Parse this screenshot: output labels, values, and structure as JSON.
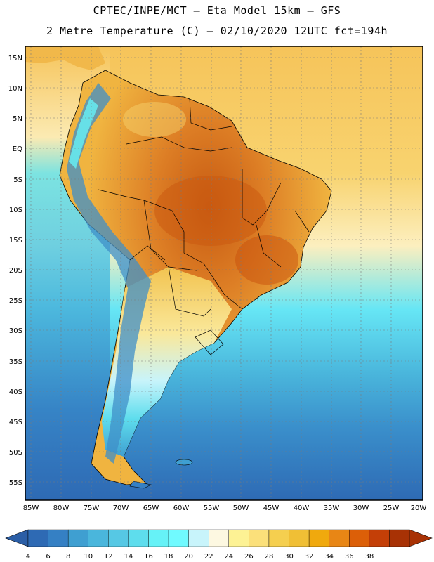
{
  "title": {
    "line1": "CPTEC/INPE/MCT –  Eta Model 15km – GFS",
    "line2": "2 Metre Temperature (C) – 02/10/2020 12UTC fct=194h"
  },
  "axes": {
    "lat_labels": [
      "15N",
      "10N",
      "5N",
      "EQ",
      "5S",
      "10S",
      "15S",
      "20S",
      "25S",
      "30S",
      "35S",
      "40S",
      "45S",
      "50S",
      "55S"
    ],
    "lon_labels": [
      "85W",
      "80W",
      "75W",
      "70W",
      "65W",
      "60W",
      "55W",
      "50W",
      "45W",
      "40W",
      "35W",
      "30W",
      "25W",
      "20W"
    ]
  },
  "colorbar": {
    "labels": [
      "4",
      "6",
      "8",
      "10",
      "12",
      "14",
      "16",
      "18",
      "20",
      "22",
      "24",
      "26",
      "28",
      "30",
      "32",
      "34",
      "36",
      "38"
    ],
    "colors": [
      "#2e6ab4",
      "#3580c4",
      "#3f9fd1",
      "#4ab6dc",
      "#56c8e4",
      "#5edded",
      "#66f2f7",
      "#70faff",
      "#c8f4fb",
      "#fdf8e1",
      "#fdf294",
      "#fbe07a",
      "#f5cf4f",
      "#f0bf35",
      "#f0a90d",
      "#e88615",
      "#dc5f08",
      "#c43f07",
      "#a83205"
    ],
    "left_arrow_color": "#2b5ea6",
    "right_arrow_color": "#a83205"
  },
  "map": {
    "ocean_north_color": "#f6c45a",
    "ocean_equator_color": "#fcefbf",
    "ocean_south_colors": [
      "#4ab6dc",
      "#3f9fd1",
      "#3580c4",
      "#2e6ab4"
    ],
    "land_hot_color": "#d8661a",
    "land_warm_color": "#eba634",
    "andes_cold_color": "#3f8fc8"
  }
}
